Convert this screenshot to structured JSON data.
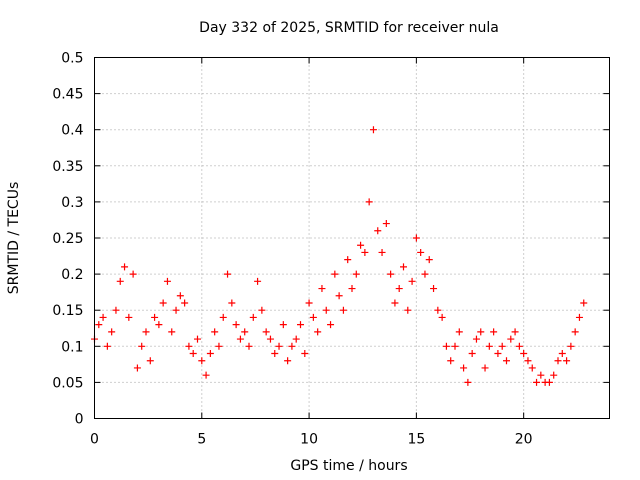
{
  "chart_data": {
    "type": "scatter",
    "title": "Day 332 of 2025, SRMTID for receiver nula",
    "xlabel": "GPS time / hours",
    "ylabel": "SRMTID / TECUs",
    "xlim": [
      0,
      24
    ],
    "ylim": [
      0,
      0.5
    ],
    "x_ticks": [
      0,
      5,
      10,
      15,
      20
    ],
    "x_tick_labels": [
      "0",
      "5",
      "10",
      "15",
      "20"
    ],
    "y_ticks": [
      0,
      0.05,
      0.1,
      0.15,
      0.2,
      0.25,
      0.3,
      0.35,
      0.4,
      0.45,
      0.5
    ],
    "y_tick_labels": [
      "0",
      "0.05",
      "0.1",
      "0.15",
      "0.2",
      "0.25",
      "0.3",
      "0.35",
      "0.4",
      "0.45",
      "0.5"
    ],
    "grid": true,
    "marker": "+",
    "series": [
      {
        "name": "SRMTID",
        "color": "#ff0000",
        "x": [
          0.0,
          0.2,
          0.4,
          0.6,
          0.8,
          1.0,
          1.2,
          1.4,
          1.6,
          1.8,
          2.0,
          2.2,
          2.4,
          2.6,
          2.8,
          3.0,
          3.2,
          3.4,
          3.6,
          3.8,
          4.0,
          4.2,
          4.4,
          4.6,
          4.8,
          5.0,
          5.2,
          5.4,
          5.6,
          5.8,
          6.0,
          6.2,
          6.4,
          6.6,
          6.8,
          7.0,
          7.2,
          7.4,
          7.6,
          7.8,
          8.0,
          8.2,
          8.4,
          8.6,
          8.8,
          9.0,
          9.2,
          9.4,
          9.6,
          9.8,
          10.0,
          10.2,
          10.4,
          10.6,
          10.8,
          11.0,
          11.2,
          11.4,
          11.6,
          11.8,
          12.0,
          12.2,
          12.4,
          12.6,
          12.8,
          13.0,
          13.2,
          13.4,
          13.6,
          13.8,
          14.0,
          14.2,
          14.4,
          14.6,
          14.8,
          15.0,
          15.2,
          15.4,
          15.6,
          15.8,
          16.0,
          16.2,
          16.4,
          16.6,
          16.8,
          17.0,
          17.2,
          17.4,
          17.6,
          17.8,
          18.0,
          18.2,
          18.4,
          18.6,
          18.8,
          19.0,
          19.2,
          19.4,
          19.6,
          19.8,
          20.0,
          20.2,
          20.4,
          20.6,
          20.8,
          21.0,
          21.2,
          21.4,
          21.6,
          21.8,
          22.0,
          22.2,
          22.4,
          22.6,
          22.8
        ],
        "y": [
          0.11,
          0.13,
          0.14,
          0.1,
          0.12,
          0.15,
          0.19,
          0.21,
          0.14,
          0.2,
          0.07,
          0.1,
          0.12,
          0.08,
          0.14,
          0.13,
          0.16,
          0.19,
          0.12,
          0.15,
          0.17,
          0.16,
          0.1,
          0.09,
          0.11,
          0.08,
          0.06,
          0.09,
          0.12,
          0.1,
          0.14,
          0.2,
          0.16,
          0.13,
          0.11,
          0.12,
          0.1,
          0.14,
          0.19,
          0.15,
          0.12,
          0.11,
          0.09,
          0.1,
          0.13,
          0.08,
          0.1,
          0.11,
          0.13,
          0.09,
          0.16,
          0.14,
          0.12,
          0.18,
          0.15,
          0.13,
          0.2,
          0.17,
          0.15,
          0.22,
          0.18,
          0.2,
          0.24,
          0.23,
          0.3,
          0.4,
          0.26,
          0.23,
          0.27,
          0.2,
          0.16,
          0.18,
          0.21,
          0.15,
          0.19,
          0.25,
          0.23,
          0.2,
          0.22,
          0.18,
          0.15,
          0.14,
          0.1,
          0.08,
          0.1,
          0.12,
          0.07,
          0.05,
          0.09,
          0.11,
          0.12,
          0.07,
          0.1,
          0.12,
          0.09,
          0.1,
          0.08,
          0.11,
          0.12,
          0.1,
          0.09,
          0.08,
          0.07,
          0.05,
          0.06,
          0.05,
          0.05,
          0.06,
          0.08,
          0.09,
          0.08,
          0.1,
          0.12,
          0.14,
          0.16
        ]
      }
    ]
  }
}
